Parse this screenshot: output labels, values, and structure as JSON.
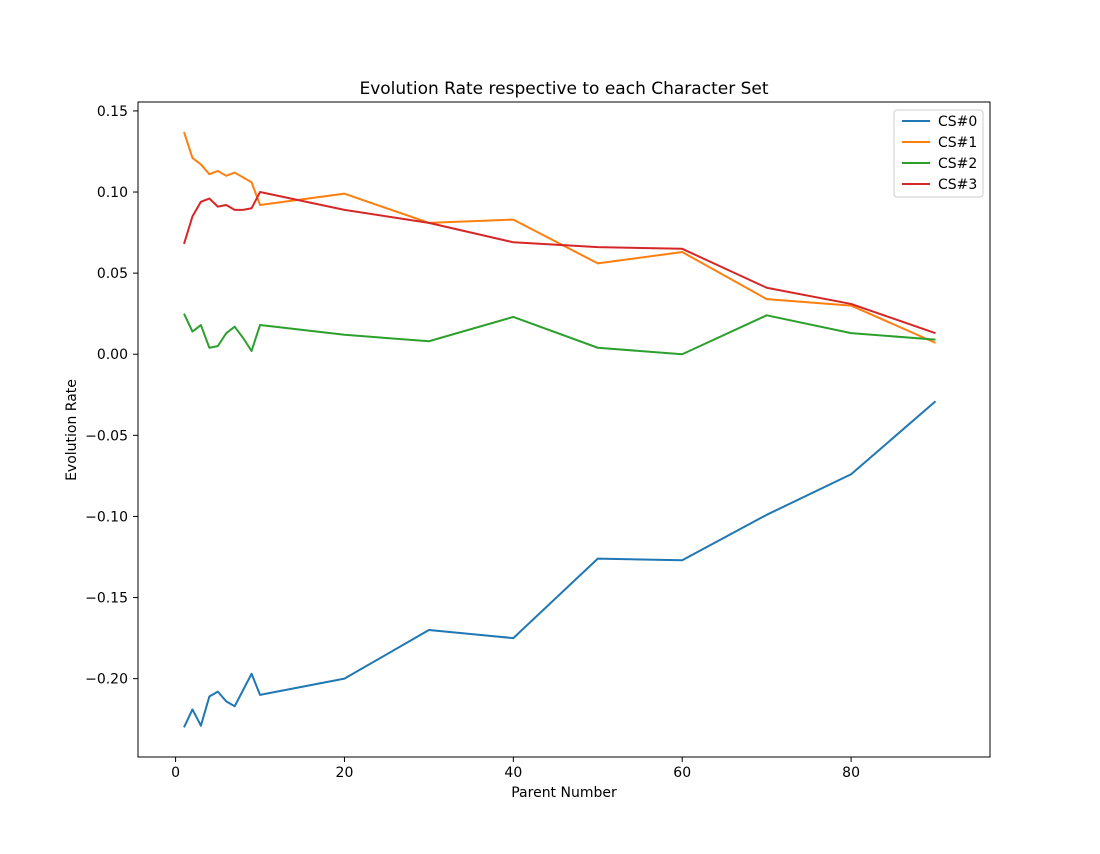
{
  "chart_data": {
    "type": "line",
    "title": "Evolution Rate respective to each Character Set",
    "xlabel": "Parent Number",
    "ylabel": "Evolution Rate",
    "xlim": [
      -4.45,
      96.45
    ],
    "ylim": [
      -0.2483,
      0.1555
    ],
    "xticks": [
      0,
      20,
      40,
      60,
      80
    ],
    "xtick_labels": [
      "0",
      "20",
      "40",
      "60",
      "80"
    ],
    "yticks": [
      -0.2,
      -0.15,
      -0.1,
      -0.05,
      0.0,
      0.05,
      0.1,
      0.15
    ],
    "ytick_labels": [
      "−0.20",
      "−0.15",
      "−0.10",
      "−0.05",
      "0.00",
      "0.05",
      "0.10",
      "0.15"
    ],
    "grid": false,
    "legend_position": "top-right",
    "x": [
      1,
      2,
      3,
      4,
      5,
      6,
      7,
      8,
      9,
      10,
      20,
      30,
      40,
      50,
      60,
      70,
      80,
      90
    ],
    "series": [
      {
        "name": "CS#0",
        "color": "#1f77b4",
        "values": [
          -0.23,
          -0.219,
          -0.229,
          -0.211,
          -0.208,
          -0.214,
          -0.217,
          -0.207,
          -0.197,
          -0.21,
          -0.2,
          -0.17,
          -0.175,
          -0.126,
          -0.127,
          -0.099,
          -0.074,
          -0.029
        ]
      },
      {
        "name": "CS#1",
        "color": "#ff7f0e",
        "values": [
          0.137,
          0.121,
          0.117,
          0.111,
          0.113,
          0.11,
          0.112,
          0.109,
          0.106,
          0.092,
          0.099,
          0.081,
          0.083,
          0.056,
          0.063,
          0.034,
          0.03,
          0.007
        ]
      },
      {
        "name": "CS#2",
        "color": "#2ca02c",
        "values": [
          0.025,
          0.014,
          0.018,
          0.004,
          0.005,
          0.013,
          0.017,
          0.01,
          0.002,
          0.018,
          0.012,
          0.008,
          0.023,
          0.004,
          0.0,
          0.024,
          0.013,
          0.009
        ]
      },
      {
        "name": "CS#3",
        "color": "#d62728",
        "values": [
          0.068,
          0.085,
          0.094,
          0.096,
          0.091,
          0.092,
          0.089,
          0.089,
          0.09,
          0.1,
          0.089,
          0.081,
          0.069,
          0.066,
          0.065,
          0.041,
          0.031,
          0.013
        ]
      }
    ]
  }
}
